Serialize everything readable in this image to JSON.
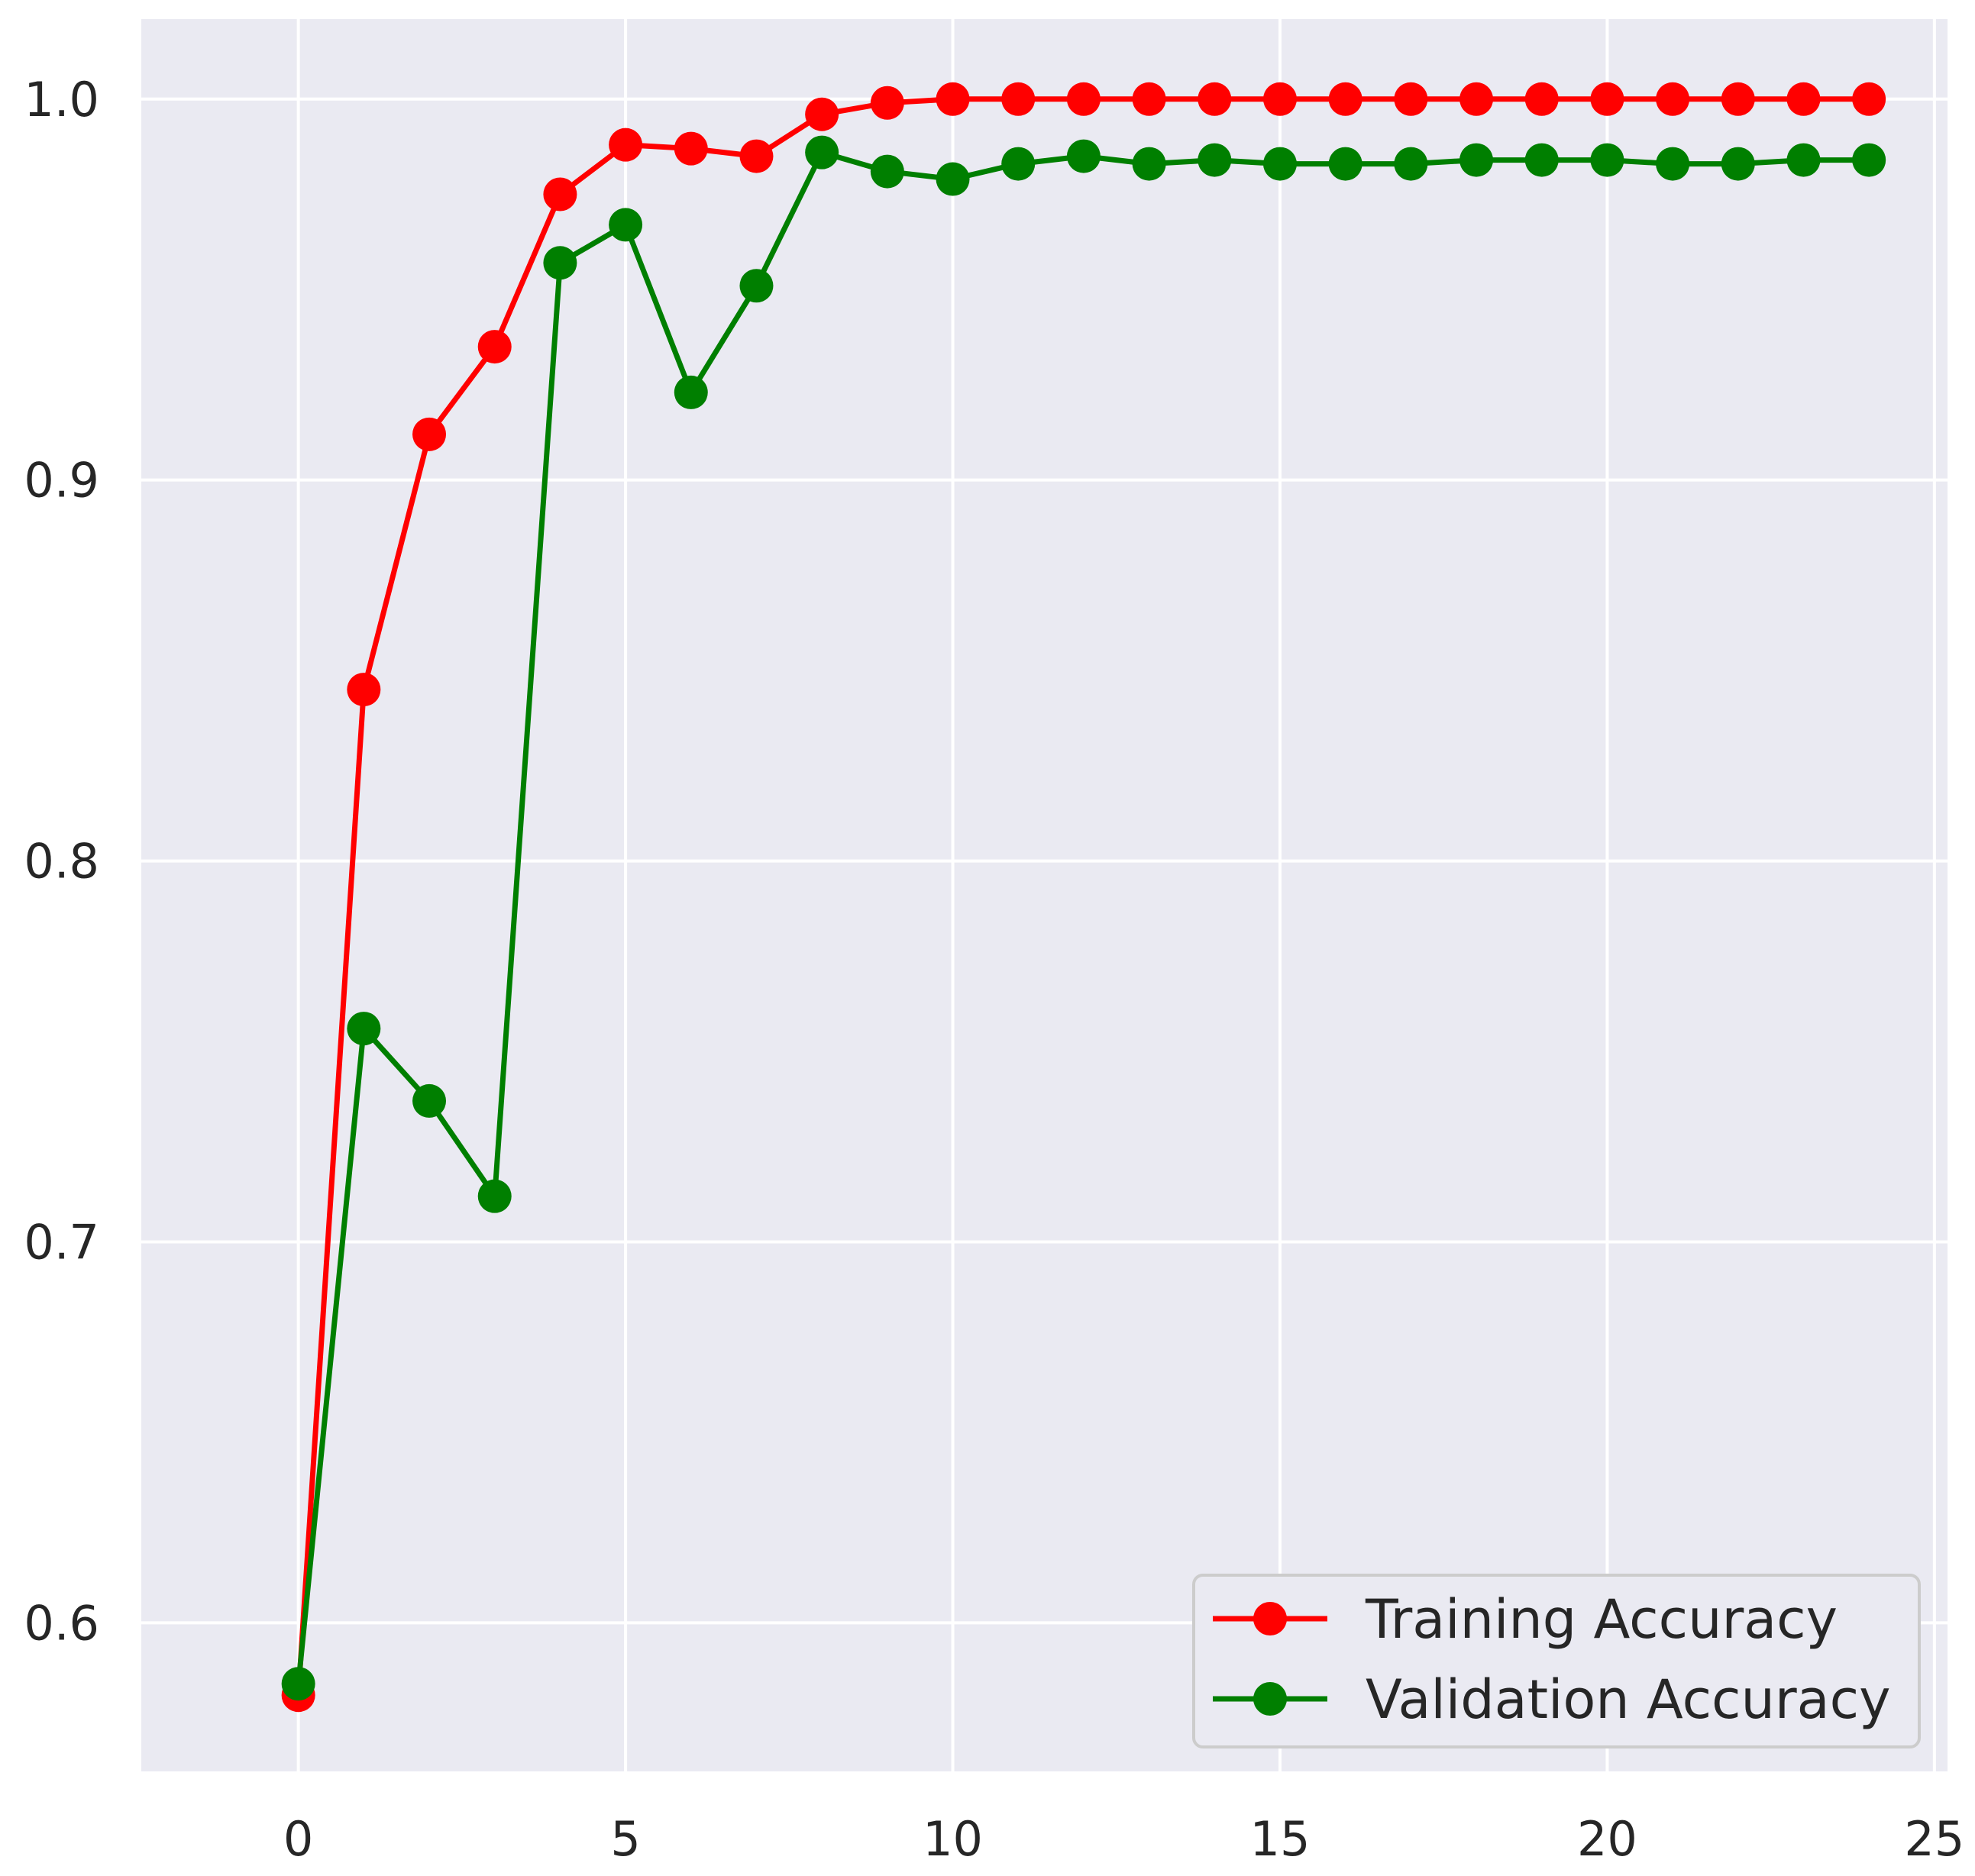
{
  "chart_data": {
    "type": "line",
    "title": "",
    "xlabel": "",
    "ylabel": "",
    "xlim": [
      -2.4,
      25.2
    ],
    "ylim": [
      0.561,
      1.021
    ],
    "xticks": [
      0,
      5,
      10,
      15,
      20,
      25
    ],
    "yticks": [
      0.6,
      0.7,
      0.8,
      0.9,
      1.0
    ],
    "xtick_labels": [
      "0",
      "5",
      "10",
      "15",
      "20",
      "25"
    ],
    "ytick_labels": [
      "0.6",
      "0.7",
      "0.8",
      "0.9",
      "1.0"
    ],
    "grid": true,
    "legend_position": "lower-right",
    "x": [
      0,
      1,
      2,
      3,
      4,
      5,
      6,
      7,
      8,
      9,
      10,
      11,
      12,
      13,
      14,
      15,
      16,
      17,
      18,
      19,
      20,
      21,
      22,
      23,
      24
    ],
    "series": [
      {
        "name": "Training Accuracy",
        "color": "#ff0000",
        "marker": "circle",
        "values": [
          0.581,
          0.845,
          0.912,
          0.935,
          0.975,
          0.988,
          0.987,
          0.985,
          0.996,
          0.999,
          1.0,
          1.0,
          1.0,
          1.0,
          1.0,
          1.0,
          1.0,
          1.0,
          1.0,
          1.0,
          1.0,
          1.0,
          1.0,
          1.0,
          1.0
        ]
      },
      {
        "name": "Validation Accuracy",
        "color": "#007f00",
        "marker": "circle",
        "values": [
          0.584,
          0.756,
          0.737,
          0.712,
          0.957,
          0.967,
          0.923,
          0.951,
          0.986,
          0.981,
          0.979,
          0.983,
          0.985,
          0.983,
          0.984,
          0.983,
          0.983,
          0.983,
          0.984,
          0.984,
          0.984,
          0.983,
          0.983,
          0.984,
          0.984
        ]
      }
    ]
  },
  "style": {
    "plot_background": "#eaeaf2",
    "grid_color": "#ffffff",
    "text_color": "#262626",
    "legend_background": "#eaeaf2",
    "legend_border": "#cccccc"
  }
}
